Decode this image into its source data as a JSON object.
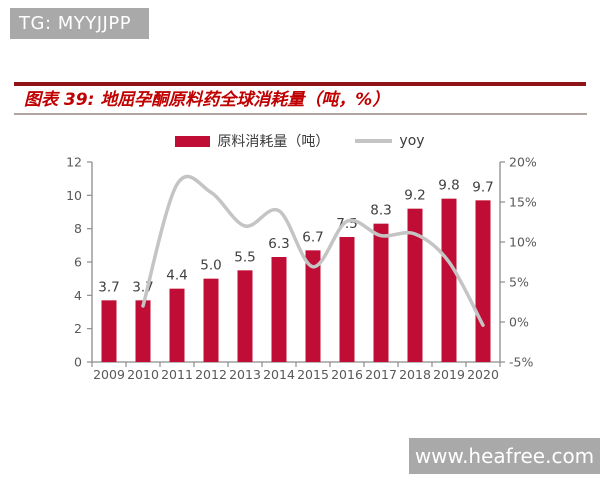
{
  "watermarks": {
    "top_text": "TG: MYYJJPP",
    "bottom_text": "www.heafree.com",
    "badge_color": "#A9A9A9",
    "text_color": "#FFFFFF"
  },
  "figure": {
    "title": "图表 39:  地屈孕酮原料药全球消耗量（吨，%）",
    "title_color": "#C00000"
  },
  "chart_data": {
    "type": "bar",
    "subtype": "bar-line-combo",
    "title": "地屈孕酮原料药全球消耗量（吨，%）",
    "categories": [
      "2009",
      "2010",
      "2011",
      "2012",
      "2013",
      "2014",
      "2015",
      "2016",
      "2017",
      "2018",
      "2019",
      "2020"
    ],
    "series": [
      {
        "name": "原料消耗量（吨）",
        "type": "bar",
        "axis": "left",
        "color": "#C00D35",
        "values": [
          3.7,
          3.7,
          4.4,
          5.0,
          5.5,
          6.3,
          6.7,
          7.5,
          8.3,
          9.2,
          9.8,
          9.7
        ],
        "value_labels": [
          "3.7",
          "3.7",
          "4.4",
          "5.0",
          "5.5",
          "6.3",
          "6.7",
          "7.5",
          "8.3",
          "9.2",
          "9.8",
          "9.7"
        ]
      },
      {
        "name": "yoy",
        "type": "line",
        "axis": "right",
        "color": "#C4C4C4",
        "values": [
          null,
          2.0,
          17.2,
          16.2,
          12.0,
          13.9,
          6.9,
          12.6,
          10.8,
          11.0,
          7.5,
          -0.4
        ]
      }
    ],
    "left_axis": {
      "min": 0,
      "max": 12,
      "step": 2,
      "tick_labels": [
        "0",
        "2",
        "4",
        "6",
        "8",
        "10",
        "12"
      ]
    },
    "right_axis": {
      "min": -5,
      "max": 20,
      "step": 5,
      "tick_labels": [
        "-5%",
        "0%",
        "5%",
        "10%",
        "15%",
        "20%"
      ]
    },
    "grid": false,
    "legend_position": "top"
  }
}
